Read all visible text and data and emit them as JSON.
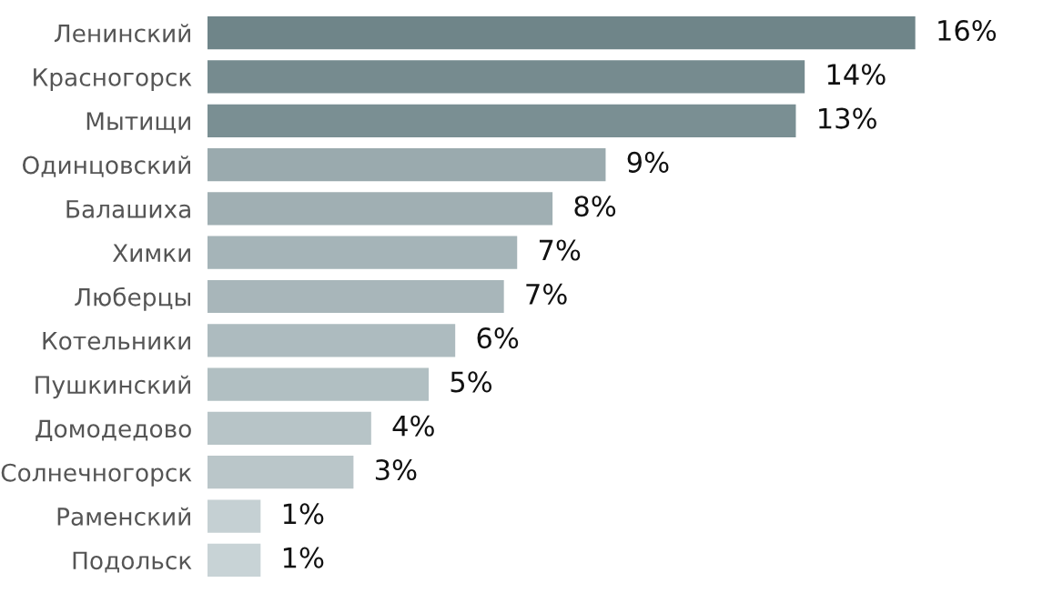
{
  "chart_data": {
    "type": "bar",
    "orientation": "horizontal",
    "categories": [
      "Ленинский",
      "Красногорск",
      "Мытищи",
      "Одинцовский",
      "Балашиха",
      "Химки",
      "Люберцы",
      "Котельники",
      "Пушкинский",
      "Домодедово",
      "Солнечногорск",
      "Раменский",
      "Подольск"
    ],
    "values": [
      16,
      13.5,
      13.3,
      9.0,
      7.8,
      7.0,
      6.7,
      5.6,
      5.0,
      3.7,
      3.3,
      1.2,
      1.2
    ],
    "value_labels": [
      "16%",
      "14%",
      "13%",
      "9%",
      "8%",
      "7%",
      "7%",
      "6%",
      "5%",
      "4%",
      "3%",
      "1%",
      "1%"
    ],
    "colors": [
      "#6f8589",
      "#768b8f",
      "#7a8f93",
      "#9aaaae",
      "#a0afb3",
      "#a5b4b8",
      "#a8b6ba",
      "#adbbbf",
      "#b1bfc2",
      "#b7c4c7",
      "#bac6c9",
      "#c5d0d3",
      "#c8d3d6"
    ],
    "grid": false,
    "legend": false
  }
}
